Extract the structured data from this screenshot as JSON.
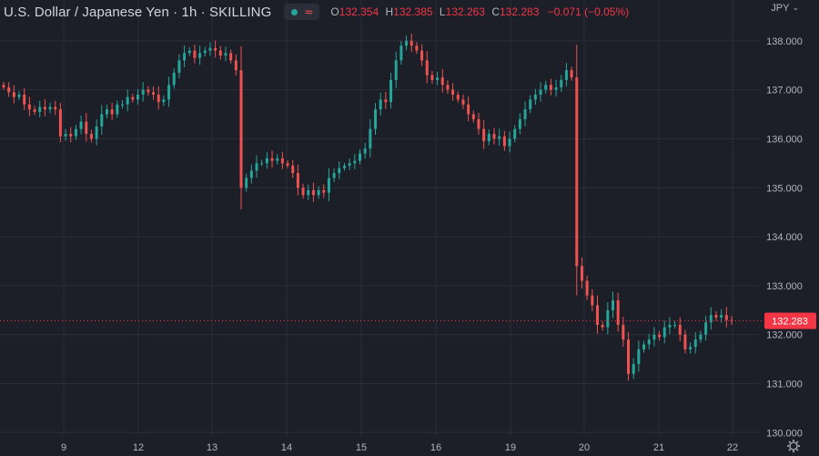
{
  "header": {
    "symbol": "U.S. Dollar / Japanese Yen · 1h · SKILLING",
    "ohlc": {
      "open_label": "O",
      "open": "132.354",
      "high_label": "H",
      "high": "132.385",
      "low_label": "L",
      "low": "132.263",
      "close_label": "C",
      "close": "132.283",
      "change": "−0.071 (−0.05%)"
    },
    "currency": "JPY"
  },
  "colors": {
    "background": "#1c1e28",
    "grid": "#2a2e39",
    "up": "#26a69a",
    "down": "#ef5350",
    "price_label_bg": "#f23645",
    "text": "#b2b5be"
  },
  "icons": [
    "market-status-dot-icon",
    "wave-icon",
    "chevron-down-icon",
    "settings-gear-icon"
  ],
  "chart_data": {
    "type": "candlestick",
    "title": "U.S. Dollar / Japanese Yen · 1h · SKILLING",
    "x_tick_labels": [
      "9",
      "12",
      "13",
      "14",
      "15",
      "16",
      "19",
      "20",
      "21",
      "22"
    ],
    "y_tick_labels": [
      "138.000",
      "137.000",
      "136.000",
      "135.000",
      "134.000",
      "133.000",
      "132.000",
      "131.000",
      "130.000"
    ],
    "ylim": [
      129.95,
      138.35
    ],
    "grid": true,
    "last_price": "132.283",
    "last_price_value": 132.283,
    "close_series": [
      137.05,
      136.95,
      136.85,
      136.9,
      136.7,
      136.6,
      136.55,
      136.65,
      136.6,
      136.65,
      136.6,
      136.05,
      136.1,
      136.05,
      136.2,
      136.35,
      136.1,
      136.0,
      136.25,
      136.5,
      136.6,
      136.5,
      136.7,
      136.7,
      136.85,
      136.8,
      136.9,
      137.0,
      136.95,
      136.9,
      136.75,
      136.8,
      137.1,
      137.35,
      137.6,
      137.75,
      137.8,
      137.65,
      137.75,
      137.8,
      137.85,
      137.8,
      137.7,
      137.75,
      137.6,
      137.4,
      135.0,
      135.2,
      135.35,
      135.5,
      135.5,
      135.6,
      135.55,
      135.6,
      135.5,
      135.45,
      135.3,
      135.0,
      134.85,
      134.95,
      134.85,
      134.95,
      134.9,
      135.2,
      135.3,
      135.4,
      135.45,
      135.5,
      135.55,
      135.7,
      135.8,
      136.2,
      136.6,
      136.8,
      136.75,
      137.2,
      137.6,
      137.9,
      138.0,
      137.9,
      137.8,
      137.6,
      137.3,
      137.2,
      137.25,
      137.1,
      137.0,
      136.9,
      136.8,
      136.7,
      136.5,
      136.4,
      136.2,
      135.95,
      136.1,
      136.0,
      136.05,
      135.85,
      136.0,
      136.2,
      136.4,
      136.6,
      136.8,
      136.9,
      137.0,
      137.1,
      137.0,
      137.05,
      137.2,
      137.4,
      137.25,
      133.4,
      133.1,
      132.8,
      132.6,
      132.2,
      132.15,
      132.5,
      132.7,
      132.2,
      131.9,
      131.2,
      131.4,
      131.7,
      131.8,
      131.9,
      132.0,
      131.95,
      132.15,
      132.2,
      132.2,
      132.0,
      131.7,
      131.75,
      131.9,
      132.0,
      132.25,
      132.4,
      132.35,
      132.4,
      132.3,
      132.28
    ]
  }
}
